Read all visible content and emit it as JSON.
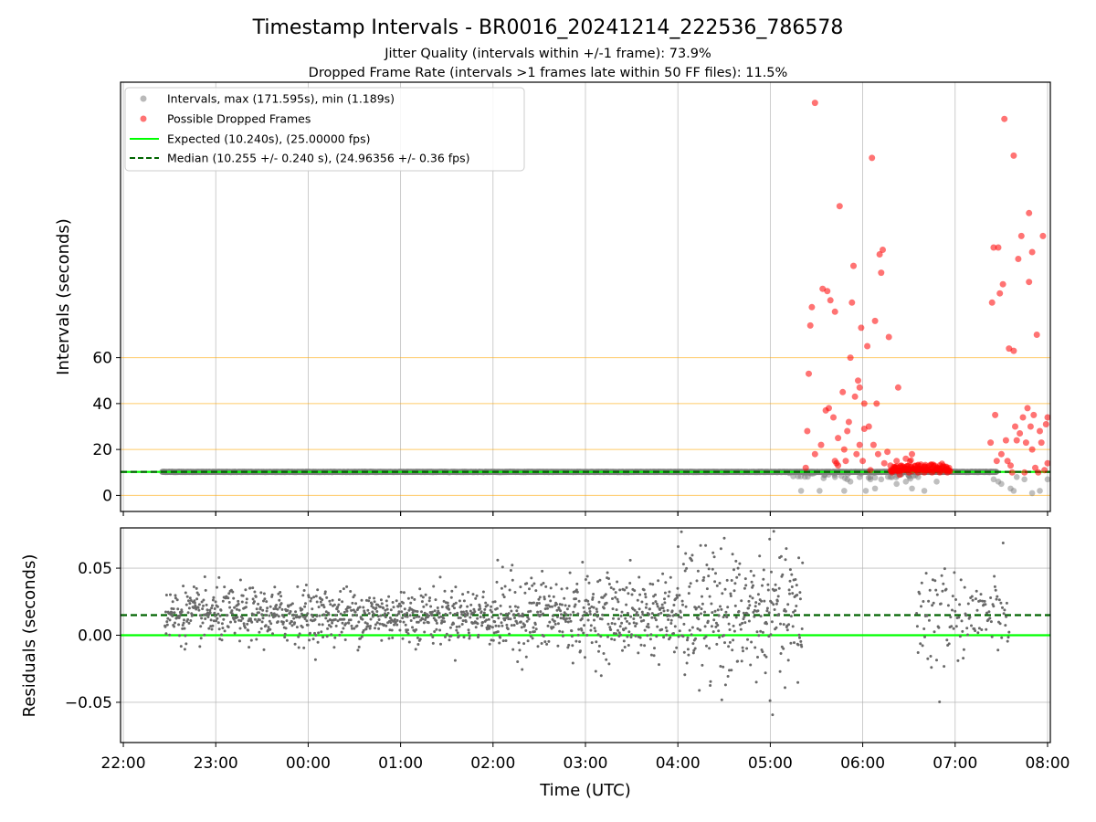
{
  "figure": {
    "title": "Timestamp Intervals - BR0016_20241214_222536_786578",
    "subtitle_1": "Jitter Quality (intervals within +/-1 frame): 73.9%",
    "subtitle_2": "Dropped Frame Rate (intervals >1 frames late within 50 FF files): 11.5%",
    "xlabel": "Time (UTC)"
  },
  "colors": {
    "intervals": "#808080",
    "dropped": "#ff0000",
    "expected": "#00ff00",
    "median": "#006400",
    "hlines": "#ffa500",
    "grid": "#b0b0b0",
    "residuals": "#696969"
  },
  "chart_data": [
    {
      "type": "scatter",
      "ylabel": "Intervals (seconds)",
      "x_ticks": [
        "22:00",
        "23:00",
        "00:00",
        "01:00",
        "02:00",
        "03:00",
        "04:00",
        "05:00",
        "06:00",
        "07:00",
        "08:00"
      ],
      "y_ticks": [
        "0",
        "20",
        "40",
        "60"
      ],
      "x_range_hours": [
        -0.03,
        10.03
      ],
      "ylim": [
        -7,
        180
      ],
      "grid": "vertical",
      "reference_lines_y": [
        0,
        20,
        40,
        60
      ],
      "expected": 10.24,
      "median": 10.255,
      "legend_position": "top-left",
      "legend": [
        "Intervals, max (171.595s), min (1.189s)",
        "Possible Dropped Frames",
        "Expected (10.240s), (25.00000 fps)",
        "Median (10.255 +/- 0.240 s), (24.96356 +/- 0.36 fps)"
      ],
      "series": [
        {
          "name": "Intervals, max (171.595s), min (1.189s)",
          "x_start": 22.42,
          "x_end": 7.45,
          "baseline": 10.24,
          "points": [
            [
              "05:20",
              2
            ],
            [
              "05:32",
              2
            ],
            [
              "05:42",
              8
            ],
            [
              "05:48",
              2
            ],
            [
              "05:50",
              7
            ],
            [
              "05:52",
              6
            ],
            [
              "05:58",
              8
            ],
            [
              "06:02",
              2
            ],
            [
              "06:05",
              7
            ],
            [
              "06:08",
              3
            ],
            [
              "06:12",
              7
            ],
            [
              "06:18",
              8
            ],
            [
              "06:22",
              5
            ],
            [
              "06:28",
              6
            ],
            [
              "06:32",
              3
            ],
            [
              "06:36",
              8
            ],
            [
              "06:40",
              2
            ],
            [
              "06:48",
              6
            ],
            [
              "07:25",
              7
            ],
            [
              "07:28",
              6
            ],
            [
              "07:30",
              5
            ],
            [
              "07:36",
              3
            ],
            [
              "07:38",
              2
            ],
            [
              "07:40",
              8
            ],
            [
              "07:45",
              7
            ],
            [
              "07:50",
              1
            ],
            [
              "07:55",
              2
            ],
            [
              "08:00",
              7
            ]
          ]
        },
        {
          "name": "Possible Dropped Frames",
          "points": [
            [
              "05:23",
              12
            ],
            [
              "05:24",
              28
            ],
            [
              "05:25",
              53
            ],
            [
              "05:26",
              74
            ],
            [
              "05:27",
              82
            ],
            [
              "05:29",
              18
            ],
            [
              "05:29",
              171
            ],
            [
              "05:33",
              22
            ],
            [
              "05:34",
              90
            ],
            [
              "05:36",
              37
            ],
            [
              "05:37",
              89
            ],
            [
              "05:38",
              38
            ],
            [
              "05:39",
              85
            ],
            [
              "05:41",
              34
            ],
            [
              "05:42",
              15
            ],
            [
              "05:42",
              80
            ],
            [
              "05:43",
              14
            ],
            [
              "05:44",
              13
            ],
            [
              "05:44",
              25
            ],
            [
              "05:45",
              126
            ],
            [
              "05:47",
              45
            ],
            [
              "05:48",
              20
            ],
            [
              "05:49",
              15
            ],
            [
              "05:50",
              28
            ],
            [
              "05:51",
              32
            ],
            [
              "05:52",
              60
            ],
            [
              "05:53",
              84
            ],
            [
              "05:54",
              100
            ],
            [
              "05:55",
              43
            ],
            [
              "05:56",
              18
            ],
            [
              "05:57",
              50
            ],
            [
              "05:58",
              22
            ],
            [
              "05:58",
              47
            ],
            [
              "05:59",
              73
            ],
            [
              "06:00",
              15
            ],
            [
              "06:01",
              40
            ],
            [
              "06:01",
              29
            ],
            [
              "06:03",
              65
            ],
            [
              "06:04",
              30
            ],
            [
              "06:05",
              11
            ],
            [
              "06:06",
              147
            ],
            [
              "06:07",
              22
            ],
            [
              "06:08",
              76
            ],
            [
              "06:09",
              40
            ],
            [
              "06:10",
              18
            ],
            [
              "06:11",
              105
            ],
            [
              "06:12",
              97
            ],
            [
              "06:13",
              107
            ],
            [
              "06:14",
              14
            ],
            [
              "06:16",
              19
            ],
            [
              "06:17",
              69
            ],
            [
              "06:18",
              13
            ],
            [
              "06:19",
              10
            ],
            [
              "06:20",
              11
            ],
            [
              "06:21",
              12
            ],
            [
              "06:22",
              15
            ],
            [
              "06:23",
              47
            ],
            [
              "06:24",
              9
            ],
            [
              "06:25",
              13
            ],
            [
              "06:28",
              16
            ],
            [
              "06:30",
              10
            ],
            [
              "06:32",
              18
            ],
            [
              "06:36",
              10
            ],
            [
              "06:40",
              10
            ],
            [
              "06:45",
              10
            ],
            [
              "06:50",
              10
            ],
            [
              "06:55",
              10
            ],
            [
              "07:23",
              23
            ],
            [
              "07:24",
              84
            ],
            [
              "07:25",
              108
            ],
            [
              "07:26",
              35
            ],
            [
              "07:27",
              15
            ],
            [
              "07:28",
              108
            ],
            [
              "07:29",
              88
            ],
            [
              "07:30",
              18
            ],
            [
              "07:31",
              92
            ],
            [
              "07:32",
              164
            ],
            [
              "07:33",
              24
            ],
            [
              "07:34",
              15
            ],
            [
              "07:35",
              64
            ],
            [
              "07:36",
              13
            ],
            [
              "07:37",
              10
            ],
            [
              "07:38",
              63
            ],
            [
              "07:38",
              148
            ],
            [
              "07:39",
              30
            ],
            [
              "07:40",
              24
            ],
            [
              "07:41",
              103
            ],
            [
              "07:42",
              27
            ],
            [
              "07:43",
              113
            ],
            [
              "07:44",
              34
            ],
            [
              "07:45",
              10
            ],
            [
              "07:46",
              23
            ],
            [
              "07:47",
              38
            ],
            [
              "07:48",
              93
            ],
            [
              "07:48",
              123
            ],
            [
              "07:49",
              30
            ],
            [
              "07:50",
              20
            ],
            [
              "07:50",
              106
            ],
            [
              "07:51",
              35
            ],
            [
              "07:52",
              12
            ],
            [
              "07:53",
              70
            ],
            [
              "07:54",
              10
            ],
            [
              "07:55",
              28
            ],
            [
              "07:56",
              23
            ],
            [
              "07:57",
              113
            ],
            [
              "07:58",
              11
            ],
            [
              "07:59",
              31
            ],
            [
              "08:00",
              34
            ],
            [
              "08:00",
              14
            ]
          ]
        }
      ]
    },
    {
      "type": "scatter",
      "ylabel": "Residuals (seconds)",
      "xlabel": "Time (UTC)",
      "x_ticks": [
        "22:00",
        "23:00",
        "00:00",
        "01:00",
        "02:00",
        "03:00",
        "04:00",
        "05:00",
        "06:00",
        "07:00",
        "08:00"
      ],
      "y_ticks": [
        "0.05",
        "0.00",
        "−0.05"
      ],
      "x_range_hours": [
        -0.03,
        10.03
      ],
      "ylim": [
        -0.08,
        0.08
      ],
      "grid": "both",
      "expected": 0.0,
      "median": 0.015,
      "series": [
        {
          "name": "Residuals",
          "x_start": 22.45,
          "x_end": 5.35,
          "gap": [
            "05:35",
            "06:35"
          ],
          "late_segment": [
            "06:35",
            "07:35"
          ],
          "spread_sd": [
            0.01,
            0.015,
            0.025,
            0.028
          ]
        }
      ]
    }
  ]
}
